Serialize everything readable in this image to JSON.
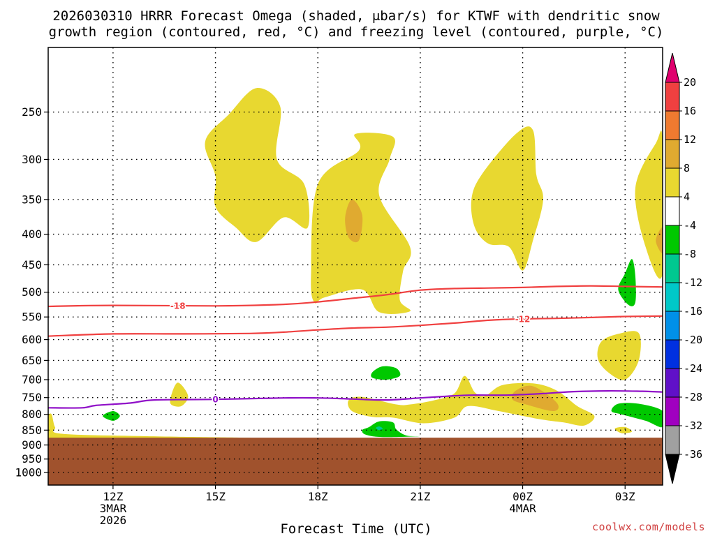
{
  "chart_data": {
    "type": "heatmap",
    "title_lines": [
      "2026030310 HRRR Forecast Omega (shaded, μbar/s) for KTWF with dendritic snow",
      "growth region (contoured, red, °C) and freezing level (contoured, purple, °C)"
    ],
    "xlabel": "Forecast Time (UTC)",
    "ylabel": "",
    "x_range_hours": [
      -1.9,
      16.1
    ],
    "x_ticks": [
      {
        "hour": 0,
        "lines": [
          "12Z",
          "3MAR",
          "2026"
        ]
      },
      {
        "hour": 3,
        "lines": [
          "15Z"
        ]
      },
      {
        "hour": 6,
        "lines": [
          "18Z"
        ]
      },
      {
        "hour": 9,
        "lines": [
          "21Z"
        ]
      },
      {
        "hour": 12,
        "lines": [
          "00Z",
          "4MAR"
        ]
      },
      {
        "hour": 15,
        "lines": [
          "03Z"
        ]
      }
    ],
    "y_scale": "log-pressure",
    "y_range_hpa": [
      1050,
      195
    ],
    "y_ticks": [
      250,
      300,
      350,
      400,
      450,
      500,
      550,
      600,
      650,
      700,
      750,
      800,
      850,
      900,
      950,
      1000
    ],
    "ground_level_hpa": 875,
    "colorbar": {
      "unit": "μbar/s",
      "tick_labels": [
        "20",
        "16",
        "12",
        "8",
        "4",
        "-4",
        "-8",
        "-12",
        "-16",
        "-20",
        "-24",
        "-28",
        "-32",
        "-36"
      ],
      "bins": [
        {
          "color": "#f0b0c8"
        },
        {
          "color": "#f04040"
        },
        {
          "color": "#f07a30"
        },
        {
          "color": "#e0aa30"
        },
        {
          "color": "#e8d830"
        },
        {
          "color": "#ffffff"
        },
        {
          "color": "#00c800"
        },
        {
          "color": "#00c890"
        },
        {
          "color": "#00c8c8"
        },
        {
          "color": "#0090e8"
        },
        {
          "color": "#0030e0"
        },
        {
          "color": "#6010c8"
        },
        {
          "color": "#a000c0"
        },
        {
          "color": "#a0a0a0"
        }
      ],
      "top_arrow_color": "#e0006e",
      "bottom_arrow_color": "#000000"
    },
    "omega_regions": [
      {
        "category": "4 to 8",
        "color": "#e8d830",
        "points": [
          [
            3.0,
            320
          ],
          [
            2.7,
            280
          ],
          [
            3.4,
            252
          ],
          [
            4.2,
            228
          ],
          [
            4.9,
            245
          ],
          [
            4.8,
            300
          ],
          [
            5.6,
            330
          ],
          [
            5.7,
            390
          ],
          [
            5.0,
            375
          ],
          [
            4.2,
            412
          ],
          [
            3.6,
            390
          ],
          [
            3.0,
            360
          ]
        ]
      },
      {
        "category": "4 to 8",
        "color": "#e8d830",
        "points": [
          [
            6.0,
            330
          ],
          [
            7.2,
            290
          ],
          [
            7.1,
            272
          ],
          [
            8.2,
            275
          ],
          [
            8.1,
            300
          ],
          [
            7.8,
            345
          ],
          [
            8.7,
            420
          ],
          [
            8.5,
            460
          ],
          [
            8.4,
            515
          ],
          [
            8.7,
            538
          ],
          [
            7.8,
            540
          ],
          [
            7.3,
            495
          ],
          [
            6.2,
            510
          ],
          [
            5.9,
            520
          ],
          [
            5.8,
            470
          ]
        ]
      },
      {
        "category": "8 to 12",
        "color": "#e0aa30",
        "points": [
          [
            6.8,
            375
          ],
          [
            7.0,
            350
          ],
          [
            7.3,
            372
          ],
          [
            7.2,
            410
          ],
          [
            6.9,
            405
          ]
        ]
      },
      {
        "category": "4 to 8",
        "color": "#e8d830",
        "points": [
          [
            10.5,
            350
          ],
          [
            10.8,
            318
          ],
          [
            11.8,
            272
          ],
          [
            12.3,
            268
          ],
          [
            12.4,
            318
          ],
          [
            12.6,
            350
          ],
          [
            12.3,
            410
          ],
          [
            12.0,
            460
          ],
          [
            11.6,
            420
          ],
          [
            11.0,
            415
          ],
          [
            10.6,
            390
          ]
        ]
      },
      {
        "category": "4 to 8",
        "color": "#e8d830",
        "points": [
          [
            15.3,
            335
          ],
          [
            15.9,
            282
          ],
          [
            16.1,
            280
          ],
          [
            16.1,
            465
          ],
          [
            15.6,
            420
          ]
        ]
      },
      {
        "category": "8 to 12",
        "color": "#e0aa30",
        "points": [
          [
            15.9,
            410
          ],
          [
            16.1,
            390
          ],
          [
            16.1,
            430
          ]
        ]
      },
      {
        "category": "4 to 8",
        "color": "#e8d830",
        "points": [
          [
            14.3,
            605
          ],
          [
            14.8,
            587
          ],
          [
            15.4,
            585
          ],
          [
            15.4,
            650
          ],
          [
            15.0,
            700
          ],
          [
            14.5,
            680
          ],
          [
            14.2,
            645
          ]
        ]
      },
      {
        "category": "4 to 8",
        "color": "#e8d830",
        "points": [
          [
            1.7,
            745
          ],
          [
            1.9,
            708
          ],
          [
            2.2,
            745
          ],
          [
            2.0,
            775
          ],
          [
            1.7,
            770
          ]
        ]
      },
      {
        "category": "4 to 8",
        "color": "#e8d830",
        "points": [
          [
            6.9,
            758
          ],
          [
            7.3,
            748
          ],
          [
            8.3,
            770
          ],
          [
            8.7,
            770
          ],
          [
            9.4,
            758
          ],
          [
            10.0,
            738
          ],
          [
            10.3,
            690
          ],
          [
            10.6,
            735
          ],
          [
            10.9,
            745
          ],
          [
            11.4,
            715
          ],
          [
            12.3,
            710
          ],
          [
            13.0,
            730
          ],
          [
            13.6,
            775
          ],
          [
            14.1,
            805
          ],
          [
            13.8,
            835
          ],
          [
            13.2,
            825
          ],
          [
            12.5,
            815
          ],
          [
            11.3,
            790
          ],
          [
            10.4,
            775
          ],
          [
            10.0,
            810
          ],
          [
            9.1,
            828
          ],
          [
            8.2,
            810
          ],
          [
            7.6,
            808
          ],
          [
            7.0,
            790
          ]
        ]
      },
      {
        "category": "8 to 12",
        "color": "#e0aa30",
        "points": [
          [
            11.8,
            730
          ],
          [
            12.3,
            718
          ],
          [
            13.0,
            765
          ],
          [
            12.9,
            790
          ],
          [
            12.1,
            770
          ],
          [
            11.7,
            755
          ]
        ]
      },
      {
        "category": "4 to 8",
        "color": "#e8d830",
        "points": [
          [
            -1.9,
            808
          ],
          [
            -1.8,
            800
          ],
          [
            -1.7,
            840
          ],
          [
            -1.5,
            862
          ],
          [
            1.0,
            870
          ],
          [
            4.0,
            876
          ],
          [
            -1.9,
            876
          ]
        ]
      },
      {
        "category": "4 to 8",
        "color": "#e8d830",
        "points": [
          [
            14.7,
            845
          ],
          [
            15.0,
            840
          ],
          [
            15.2,
            855
          ],
          [
            14.9,
            860
          ]
        ]
      },
      {
        "category": "-4 to -8",
        "color": "#00c800",
        "points": [
          [
            7.5,
            840
          ],
          [
            7.8,
            822
          ],
          [
            8.2,
            825
          ],
          [
            8.3,
            848
          ],
          [
            8.6,
            868
          ],
          [
            9.0,
            870
          ],
          [
            7.9,
            873
          ],
          [
            7.4,
            865
          ],
          [
            7.3,
            850
          ]
        ]
      },
      {
        "category": "-4 to -8",
        "color": "#00c800",
        "points": [
          [
            7.6,
            680
          ],
          [
            7.9,
            665
          ],
          [
            8.3,
            670
          ],
          [
            8.4,
            690
          ],
          [
            8.0,
            700
          ],
          [
            7.6,
            695
          ]
        ]
      },
      {
        "category": "-4 to -8",
        "color": "#00c800",
        "points": [
          [
            -0.3,
            805
          ],
          [
            0.0,
            790
          ],
          [
            0.2,
            805
          ],
          [
            0.0,
            820
          ]
        ]
      },
      {
        "category": "-4 to -8",
        "color": "#00c800",
        "points": [
          [
            15.0,
            465
          ],
          [
            15.2,
            440
          ],
          [
            15.3,
            470
          ],
          [
            15.3,
            520
          ],
          [
            15.1,
            525
          ],
          [
            14.8,
            495
          ]
        ]
      },
      {
        "category": "-4 to -8",
        "color": "#00c800",
        "points": [
          [
            14.6,
            790
          ],
          [
            14.8,
            768
          ],
          [
            15.4,
            768
          ],
          [
            16.1,
            790
          ],
          [
            16.1,
            840
          ],
          [
            15.6,
            820
          ],
          [
            14.9,
            800
          ]
        ]
      },
      {
        "category": "-8 to -12",
        "color": "#00c890",
        "points": [
          [
            7.7,
            843
          ],
          [
            7.8,
            838
          ],
          [
            7.9,
            845
          ],
          [
            7.8,
            850
          ]
        ]
      }
    ],
    "contours": [
      {
        "name": "dgz -18 °C",
        "level": "-18",
        "color": "#f04040",
        "label": "-18",
        "label_hour": 1.9,
        "points": [
          [
            -1.9,
            528
          ],
          [
            0,
            526
          ],
          [
            3,
            527
          ],
          [
            5,
            524
          ],
          [
            6,
            519
          ],
          [
            7,
            512
          ],
          [
            8,
            505
          ],
          [
            9,
            496
          ],
          [
            10,
            493
          ],
          [
            11,
            492
          ],
          [
            12,
            491
          ],
          [
            13,
            489
          ],
          [
            14,
            488
          ],
          [
            15,
            489
          ],
          [
            16.1,
            490
          ]
        ]
      },
      {
        "name": "dgz -12 °C",
        "level": "-12",
        "color": "#f04040",
        "label": "-12",
        "label_hour": 12.0,
        "points": [
          [
            -1.9,
            592
          ],
          [
            0,
            587
          ],
          [
            2,
            587
          ],
          [
            4,
            586
          ],
          [
            5,
            583
          ],
          [
            6,
            578
          ],
          [
            7,
            574
          ],
          [
            8,
            572
          ],
          [
            9,
            568
          ],
          [
            10,
            563
          ],
          [
            11,
            557
          ],
          [
            12,
            554
          ],
          [
            13,
            553
          ],
          [
            14,
            551
          ],
          [
            15,
            549
          ],
          [
            16.1,
            548
          ]
        ]
      },
      {
        "name": "freezing level 0 °C",
        "level": "0",
        "color": "#9010c8",
        "label": "0",
        "label_hour": 3.0,
        "points": [
          [
            -1.9,
            780
          ],
          [
            -0.9,
            780
          ],
          [
            -0.5,
            773
          ],
          [
            0.5,
            766
          ],
          [
            1.2,
            757
          ],
          [
            3,
            755
          ],
          [
            5,
            751
          ],
          [
            6,
            751
          ],
          [
            7,
            754
          ],
          [
            8,
            757
          ],
          [
            9,
            751
          ],
          [
            9.8,
            746
          ],
          [
            10.5,
            743
          ],
          [
            11.5,
            743
          ],
          [
            12.5,
            739
          ],
          [
            13.5,
            733
          ],
          [
            14.5,
            731
          ],
          [
            15.5,
            732
          ],
          [
            16.1,
            734
          ]
        ]
      }
    ]
  },
  "credit": "coolwx.com/models",
  "colors": {
    "ground": "#a0522d",
    "grid": "#000000"
  }
}
